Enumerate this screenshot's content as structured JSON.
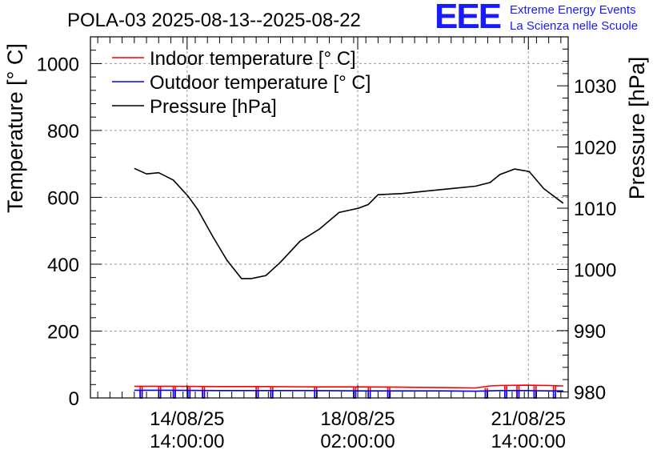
{
  "logo": {
    "letters": "EEE",
    "line1": "Extreme Energy Events",
    "line2": "La Scienza nelle Scuole",
    "color": "#1a1aff"
  },
  "chart_data": {
    "type": "line",
    "title": "POLA-03 2025-08-13--2025-08-22",
    "ylabel": "Temperature [° C]",
    "y2label": "Pressure [hPa]",
    "xlabel": "",
    "x_unit": "days since 2025-08-13 00:00",
    "xlim": [
      -0.4,
      9.4
    ],
    "ylim": [
      0,
      1080
    ],
    "y2lim": [
      979,
      1038
    ],
    "yticks": [
      0,
      200,
      400,
      600,
      800,
      1000
    ],
    "y2ticks": [
      980,
      990,
      1000,
      1010,
      1020,
      1030
    ],
    "xticks": [
      {
        "x": 1.5833,
        "line1": "14/08/25",
        "line2": "14:00:00"
      },
      {
        "x": 5.0833,
        "line1": "18/08/25",
        "line2": "02:00:00"
      },
      {
        "x": 8.5833,
        "line1": "21/08/25",
        "line2": "14:00:00"
      }
    ],
    "grid": true,
    "legend_position": "top-left",
    "series": [
      {
        "name": "Indoor temperature [° C]",
        "color": "#ff0000",
        "axis": "left",
        "x": [
          0.5,
          1.2,
          2.2,
          3.2,
          4.2,
          5.2,
          6.0,
          6.8,
          7.5,
          7.8,
          8.0,
          8.5,
          9.0,
          9.3
        ],
        "y": [
          35,
          35,
          34,
          34,
          33,
          33,
          32,
          31,
          30,
          36,
          37,
          38,
          37,
          36
        ]
      },
      {
        "name": "Outdoor temperature [° C]",
        "color": "#0000ff",
        "axis": "left",
        "x": [
          0.5,
          1.2,
          2.2,
          3.2,
          4.2,
          5.2,
          6.0,
          6.8,
          7.5,
          8.0,
          8.5,
          9.0,
          9.3
        ],
        "y": [
          23,
          23,
          22,
          22,
          22,
          21,
          21,
          21,
          20,
          22,
          22,
          21,
          21
        ],
        "hidden_segments_note": "drawn with periodic drops to zero"
      },
      {
        "name": "Pressure [hPa]",
        "color": "#000000",
        "axis": "right",
        "x": [
          0.5,
          0.75,
          1.0,
          1.3,
          1.6,
          1.8,
          2.1,
          2.4,
          2.7,
          2.9,
          3.2,
          3.5,
          3.9,
          4.3,
          4.7,
          5.1,
          5.3,
          5.5,
          6.0,
          6.5,
          7.0,
          7.5,
          7.8,
          8.0,
          8.3,
          8.6,
          8.9,
          9.2,
          9.3
        ],
        "y": [
          1016.5,
          1015.6,
          1015.8,
          1014.6,
          1012.0,
          1009.8,
          1005.5,
          1001.5,
          998.5,
          998.5,
          999.0,
          1001.2,
          1004.6,
          1006.6,
          1009.3,
          1010.0,
          1010.6,
          1012.2,
          1012.4,
          1012.8,
          1013.2,
          1013.6,
          1014.2,
          1015.5,
          1016.4,
          1016.0,
          1013.2,
          1011.4,
          1010.8
        ]
      }
    ]
  }
}
